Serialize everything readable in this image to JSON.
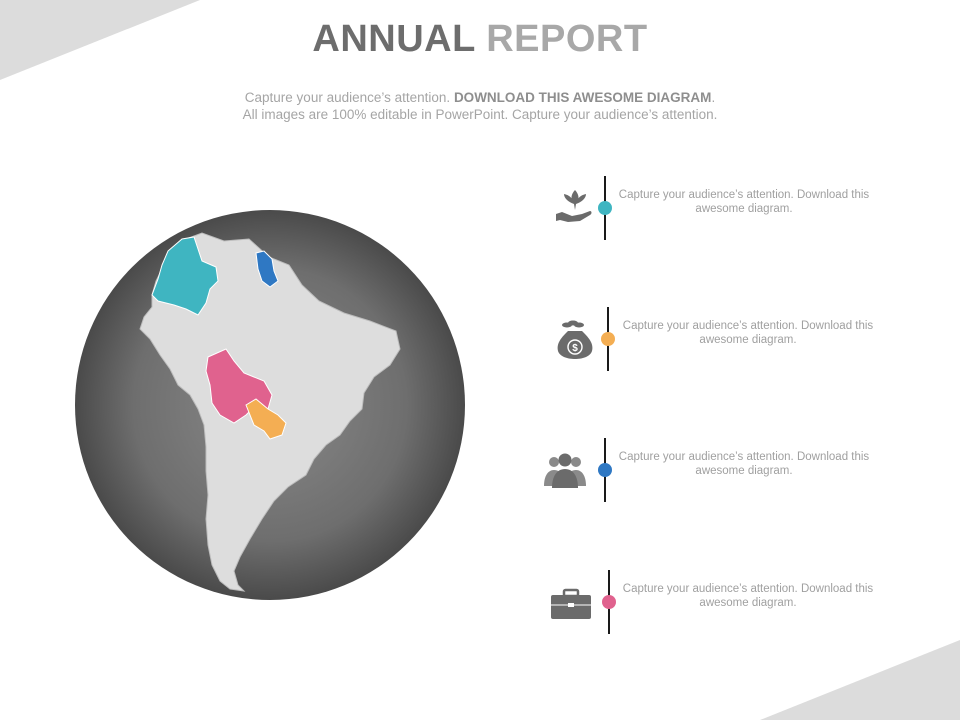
{
  "header": {
    "title_part1": "ANNUAL",
    "title_part2": "REPORT",
    "subtitle_line1_plain": "Capture your audience’s attention.",
    "subtitle_line1_bold": "DOWNLOAD THIS AWESOME DIAGRAM",
    "subtitle_line1_end": ".",
    "subtitle_line2": "All images are 100% editable in PowerPoint. Capture your audience’s attention."
  },
  "map": {
    "highlighted_countries": [
      {
        "name": "Colombia",
        "color": "#3fb5c1"
      },
      {
        "name": "Guyana",
        "color": "#2f78c3"
      },
      {
        "name": "Bolivia",
        "color": "#e0628e"
      },
      {
        "name": "Paraguay",
        "color": "#f4ae53"
      }
    ],
    "continent_color": "#dddddd",
    "globe_color": "#6e6e6e"
  },
  "items": [
    {
      "icon": "plant-in-hand-icon",
      "color": "#3fb5c1",
      "text": "Capture your audience’s attention. Download this awesome diagram."
    },
    {
      "icon": "money-bag-icon",
      "color": "#f4ae53",
      "text": "Capture your audience’s attention. Download this awesome diagram."
    },
    {
      "icon": "people-group-icon",
      "color": "#2f78c3",
      "text": "Capture your audience’s attention. Download this awesome diagram."
    },
    {
      "icon": "briefcase-icon",
      "color": "#e0628e",
      "text": "Capture your audience’s attention. Download this awesome diagram."
    }
  ]
}
